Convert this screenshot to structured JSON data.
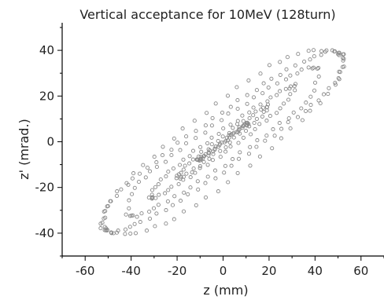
{
  "chart_data": {
    "type": "scatter",
    "title": "Vertical acceptance for 10MeV (128turn)",
    "xlabel": "z (mm)",
    "ylabel": "z' (mrad.)",
    "xlim": [
      -70,
      70
    ],
    "ylim": [
      -50,
      50
    ],
    "xticks": [
      -60,
      -40,
      -20,
      0,
      20,
      40,
      60
    ],
    "yticks": [
      -40,
      -20,
      0,
      20,
      40
    ],
    "grid": false,
    "marker": "open-circle",
    "marker_color": "#888888",
    "series": [
      {
        "values": [
          [
            11.0,
            8.0
          ],
          [
            8.6,
            6.8
          ],
          [
            5.4,
            4.5
          ],
          [
            1.9,
            1.6
          ],
          [
            -1.8,
            -1.3
          ],
          [
            -5.3,
            -4.1
          ],
          [
            -8.5,
            -6.4
          ],
          [
            -10.8,
            -7.9
          ],
          [
            -11.0,
            -8.1
          ],
          [
            -9.0,
            -7.1
          ],
          [
            -5.8,
            -5.0
          ],
          [
            -2.1,
            -2.2
          ],
          [
            1.6,
            0.9
          ],
          [
            5.0,
            3.8
          ],
          [
            8.2,
            6.3
          ],
          [
            10.7,
            7.9
          ]
        ]
      },
      {
        "values": [
          [
            20.0,
            16.0
          ],
          [
            16.5,
            14.1
          ],
          [
            11.0,
            10.6
          ],
          [
            4.5,
            5.9
          ],
          [
            -2.4,
            0.5
          ],
          [
            -9.0,
            -4.7
          ],
          [
            -14.7,
            -9.5
          ],
          [
            -18.8,
            -13.3
          ],
          [
            -20.0,
            -16.1
          ],
          [
            -17.4,
            -15.2
          ],
          [
            -12.3,
            -12.0
          ],
          [
            -6.0,
            -7.5
          ],
          [
            0.7,
            -2.1
          ],
          [
            7.5,
            3.4
          ],
          [
            13.3,
            8.4
          ],
          [
            18.2,
            12.8
          ]
        ]
      },
      {
        "values": [
          [
            32.0,
            25.0
          ],
          [
            27.3,
            23.1
          ],
          [
            18.8,
            18.0
          ],
          [
            8.6,
            11.3
          ],
          [
            -2.1,
            3.6
          ],
          [
            -12.5,
            -4.3
          ],
          [
            -21.6,
            -11.7
          ],
          [
            -28.6,
            -18.3
          ],
          [
            -32.0,
            -24.6
          ],
          [
            -29.6,
            -24.5
          ],
          [
            -22.0,
            -20.0
          ],
          [
            -12.2,
            -13.6
          ],
          [
            -1.6,
            -6.3
          ],
          [
            9.1,
            1.6
          ],
          [
            18.7,
            9.4
          ],
          [
            26.9,
            16.4
          ]
        ]
      },
      {
        "values": [
          [
            42.0,
            32.0
          ],
          [
            37.2,
            32.5
          ],
          [
            26.9,
            27.6
          ],
          [
            13.6,
            19.3
          ],
          [
            -0.9,
            9.6
          ],
          [
            -15.6,
            -1.0
          ],
          [
            -28.8,
            -11.0
          ],
          [
            -38.9,
            -19.9
          ],
          [
            -42.0,
            -32.0
          ],
          [
            -37.7,
            -32.7
          ],
          [
            -27.6,
            -27.9
          ],
          [
            -14.2,
            -20.0
          ],
          [
            0.5,
            -10.3
          ],
          [
            15.1,
            0.5
          ],
          [
            28.4,
            10.4
          ],
          [
            38.6,
            19.4
          ]
        ]
      },
      {
        "values": [
          [
            53.0,
            38.0
          ],
          [
            47.5,
            40.0
          ],
          [
            34.8,
            35.4
          ],
          [
            17.9,
            25.4
          ],
          [
            -0.6,
            12.9
          ],
          [
            -19.3,
            -0.7
          ],
          [
            -36.3,
            -14.0
          ],
          [
            -49.3,
            -25.7
          ],
          [
            -53.0,
            -38.0
          ],
          [
            -47.9,
            -39.9
          ],
          [
            -35.5,
            -35.4
          ],
          [
            -18.5,
            -25.8
          ],
          [
            -0.1,
            -13.2
          ],
          [
            18.5,
            0.3
          ],
          [
            35.7,
            13.6
          ],
          [
            49.2,
            25.5
          ]
        ]
      },
      {
        "values": [
          [
            53.0,
            36.0
          ],
          [
            48.4,
            39.5
          ],
          [
            36.7,
            40.1
          ],
          [
            20.4,
            33.4
          ],
          [
            1.8,
            20.3
          ],
          [
            -17.1,
            5.5
          ],
          [
            -34.8,
            -10.2
          ],
          [
            -49.6,
            -25.7
          ],
          [
            -53.0,
            -36.0
          ],
          [
            -48.8,
            -39.8
          ],
          [
            -37.5,
            -40.3
          ],
          [
            -21.3,
            -33.9
          ],
          [
            -2.6,
            -21.4
          ],
          [
            16.3,
            -6.6
          ],
          [
            34.3,
            9.6
          ],
          [
            49.4,
            24.7
          ]
        ]
      }
    ]
  }
}
